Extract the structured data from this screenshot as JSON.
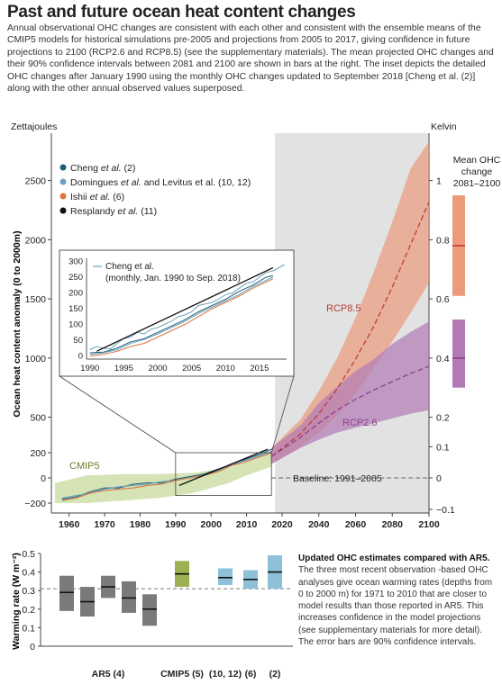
{
  "title": "Past and future ocean heat content changes",
  "intro": "Annual observational OHC changes are consistent with each other and consistent with the ensemble means of the CMIP5 models for historical simulations pre-2005 and projections from 2005 to 2017, giving confidence in future projections to 2100 (RCP2.6 and RCP8.5) (see the supplementary materials). The mean projected OHC changes and their 90% confidence intervals between 2081 and 2100 are shown in bars at the right. The inset depicts the detailed OHC changes after January 1990 using the monthly OHC changes updated to September 2018 [Cheng et al. (2)] along with the other annual observed values superposed.",
  "colors": {
    "cheng": "#1d5f75",
    "domingues": "#6aa3c2",
    "ishii": "#d9743f",
    "resplandy": "#111111",
    "cmip5": "#b5cc76",
    "rcp85": "#eb9a7c",
    "rcp26": "#b27ab5",
    "rcp85_line": "#c43d3a",
    "rcp26_line": "#8b3f8e",
    "projection_bg": "#e2e2e2",
    "ar5_box": "#7a7a7a",
    "cmip5_box": "#9db054",
    "obs_box": "#8cc1d9"
  },
  "chart_data": [
    {
      "type": "line",
      "title": "",
      "ylabel": "Ocean heat content anomaly (0 to 2000m)",
      "ylabel_units": "Zettajoules",
      "y2label": "Kelvin",
      "xlim": [
        1955,
        2100
      ],
      "ylim": [
        -300,
        2900
      ],
      "x_ticks": [
        1960,
        1970,
        1980,
        1990,
        2000,
        2010,
        2020,
        2040,
        2060,
        2080,
        2100
      ],
      "y_ticks": [
        -200,
        0,
        200,
        500,
        1000,
        1500,
        2000,
        2500
      ],
      "y2_ticks": [
        -0.1,
        0,
        0.1,
        0.2,
        0.4,
        0.6,
        0.8,
        1
      ],
      "legend": [
        {
          "text": "Cheng",
          "italic": "et al.",
          "ref": "(2)",
          "color": "cheng"
        },
        {
          "text": "Domingues",
          "italic": "et al.",
          "ref": "and Levitus et al. (10, 12)",
          "color": "domingues"
        },
        {
          "text": "Ishii",
          "italic": "et al.",
          "ref": "(6)",
          "color": "ishii"
        },
        {
          "text": "Resplandy",
          "italic": "et al.",
          "ref": "(11)",
          "color": "resplandy"
        }
      ],
      "labels": {
        "cmip5": "CMIP5",
        "rcp85": "RCP8.5",
        "rcp26": "RCP2.6",
        "baseline": "Baseline: 1991–2005"
      },
      "cmip5_band": {
        "x": [
          1956,
          1965,
          1975,
          1985,
          1995,
          2005,
          2010,
          2017
        ],
        "upper": [
          -40,
          20,
          30,
          30,
          40,
          80,
          130,
          200
        ],
        "lower": [
          -200,
          -200,
          -180,
          -160,
          -120,
          -40,
          20,
          90
        ]
      },
      "rcp85": {
        "x": [
          2017,
          2030,
          2040,
          2050,
          2060,
          2070,
          2080,
          2090,
          2100
        ],
        "mean": [
          170,
          360,
          530,
          740,
          990,
          1270,
          1600,
          1960,
          2320
        ],
        "upper": [
          240,
          480,
          720,
          1000,
          1340,
          1730,
          2150,
          2600,
          2830
        ],
        "lower": [
          110,
          250,
          370,
          520,
          700,
          920,
          1140,
          1380,
          1640
        ]
      },
      "rcp26": {
        "x": [
          2017,
          2030,
          2040,
          2050,
          2060,
          2070,
          2080,
          2090,
          2100
        ],
        "mean": [
          170,
          330,
          450,
          560,
          650,
          730,
          800,
          870,
          930
        ],
        "upper": [
          240,
          430,
          620,
          760,
          890,
          990,
          1120,
          1220,
          1310
        ],
        "lower": [
          110,
          240,
          310,
          370,
          410,
          450,
          490,
          530,
          560
        ]
      },
      "series": [
        {
          "name": "Cheng et al. (2)",
          "color": "cheng",
          "x": [
            1958,
            1962,
            1966,
            1970,
            1974,
            1978,
            1982,
            1986,
            1990,
            1994,
            1998,
            2002,
            2006,
            2010,
            2014,
            2017
          ],
          "y": [
            -170,
            -150,
            -110,
            -80,
            -80,
            -50,
            -40,
            -40,
            -10,
            10,
            30,
            70,
            100,
            150,
            190,
            230
          ]
        },
        {
          "name": "Domingues et al. and Levitus et al. (10, 12)",
          "color": "domingues",
          "x": [
            1958,
            1962,
            1966,
            1970,
            1974,
            1978,
            1982,
            1986,
            1990,
            1994,
            1998,
            2002,
            2006,
            2010,
            2014,
            2017
          ],
          "y": [
            -160,
            -140,
            -120,
            -90,
            -70,
            -60,
            -50,
            -30,
            -20,
            0,
            20,
            60,
            110,
            140,
            180,
            210
          ]
        },
        {
          "name": "Ishii et al. (6)",
          "color": "ishii",
          "x": [
            1958,
            1962,
            1966,
            1970,
            1974,
            1978,
            1982,
            1986,
            1990,
            1994,
            1998,
            2002,
            2006,
            2010,
            2014,
            2017
          ],
          "y": [
            -180,
            -160,
            -120,
            -100,
            -90,
            -80,
            -60,
            -50,
            -20,
            0,
            20,
            50,
            100,
            130,
            170,
            200
          ]
        },
        {
          "name": "Resplandy et al. (11)",
          "color": "resplandy",
          "x": [
            1991,
            2016
          ],
          "y": [
            -60,
            230
          ]
        }
      ],
      "right_bars": {
        "title": [
          "Mean OHC",
          "change",
          "2081–2100"
        ],
        "rcp85": {
          "mean": 0.78,
          "low": 0.61,
          "high": 0.95
        },
        "rcp26": {
          "mean": 0.4,
          "low": 0.3,
          "high": 0.53
        }
      }
    },
    {
      "type": "line",
      "title": "",
      "legend": [
        "Cheng et al.",
        "(monthly, Jan. 1990 to Sep. 2018)"
      ],
      "xlim": [
        1989.5,
        2019
      ],
      "ylim": [
        -10,
        310
      ],
      "x_ticks": [
        1990,
        1995,
        2000,
        2005,
        2010,
        2015
      ],
      "y_ticks": [
        0,
        50,
        100,
        150,
        200,
        250,
        300
      ],
      "series": [
        {
          "name": "Cheng et al. monthly",
          "color": "domingues",
          "x": [
            1990,
            1991,
            1992,
            1993,
            1994,
            1995,
            1996,
            1997,
            1998,
            1999,
            2000,
            2001,
            2002,
            2003,
            2004,
            2005,
            2006,
            2007,
            2008,
            2009,
            2010,
            2011,
            2012,
            2013,
            2014,
            2015,
            2016,
            2017,
            2018.7
          ],
          "y": [
            20,
            30,
            25,
            22,
            40,
            55,
            60,
            75,
            70,
            85,
            90,
            100,
            110,
            125,
            130,
            140,
            160,
            165,
            170,
            180,
            195,
            200,
            215,
            230,
            235,
            250,
            265,
            270,
            290
          ]
        },
        {
          "name": "Cheng et al. annual",
          "color": "cheng",
          "x": [
            1990,
            1992,
            1994,
            1996,
            1998,
            2000,
            2002,
            2004,
            2006,
            2008,
            2010,
            2012,
            2014,
            2016,
            2017
          ],
          "y": [
            10,
            12,
            25,
            45,
            55,
            75,
            95,
            115,
            140,
            160,
            180,
            205,
            225,
            250,
            255
          ]
        },
        {
          "name": "Domingues and Levitus annual",
          "color": "domingues",
          "x": [
            1990,
            1992,
            1994,
            1996,
            1998,
            2000,
            2002,
            2004,
            2006,
            2008,
            2010,
            2012,
            2014,
            2016,
            2017
          ],
          "y": [
            5,
            10,
            20,
            40,
            52,
            70,
            90,
            110,
            135,
            155,
            175,
            195,
            220,
            240,
            250
          ]
        },
        {
          "name": "Ishii annual",
          "color": "ishii",
          "x": [
            1990,
            1992,
            1994,
            1996,
            1998,
            2000,
            2002,
            2004,
            2006,
            2008,
            2010,
            2012,
            2014,
            2016,
            2017
          ],
          "y": [
            0,
            5,
            15,
            30,
            40,
            60,
            80,
            100,
            125,
            150,
            170,
            190,
            215,
            235,
            245
          ]
        },
        {
          "name": "Resplandy",
          "color": "resplandy",
          "x": [
            1991,
            2017
          ],
          "y": [
            15,
            280
          ]
        }
      ]
    },
    {
      "type": "bar",
      "title": "",
      "ylabel": "Warming rate (W m⁻²)",
      "ylim": [
        0,
        0.5
      ],
      "y_ticks": [
        0,
        0.1,
        0.2,
        0.3,
        0.4,
        0.5
      ],
      "reference_line": 0.31,
      "groups": [
        {
          "label": "AR5 (4)",
          "color": "ar5_box",
          "boxes": [
            {
              "mean": 0.29,
              "low": 0.19,
              "high": 0.38
            },
            {
              "mean": 0.24,
              "low": 0.16,
              "high": 0.32
            },
            {
              "mean": 0.32,
              "low": 0.26,
              "high": 0.38
            },
            {
              "mean": 0.26,
              "low": 0.18,
              "high": 0.35
            },
            {
              "mean": 0.2,
              "low": 0.11,
              "high": 0.28
            }
          ]
        },
        {
          "label": "CMIP5 (5)",
          "color": "cmip5_box",
          "boxes": [
            {
              "mean": 0.39,
              "low": 0.32,
              "high": 0.46
            }
          ]
        },
        {
          "label": "(10, 12)",
          "color": "obs_box",
          "boxes": [
            {
              "mean": 0.37,
              "low": 0.33,
              "high": 0.42
            }
          ]
        },
        {
          "label": "(6)",
          "color": "obs_box",
          "boxes": [
            {
              "mean": 0.36,
              "low": 0.31,
              "high": 0.41
            }
          ]
        },
        {
          "label": "(2)",
          "color": "obs_box",
          "boxes": [
            {
              "mean": 0.4,
              "low": 0.31,
              "high": 0.49
            }
          ]
        }
      ]
    }
  ],
  "sidenote": {
    "lead": "Updated OHC estimates compared with AR5.",
    "body": " The three most recent observation -based OHC analyses give ocean warming rates (depths from 0 to 2000 m) for 1971 to 2010 that are closer to model results than those reported in AR5. This increases confidence in the model projections (see supplementary materials for more detail). The error bars are 90% confidence intervals."
  }
}
